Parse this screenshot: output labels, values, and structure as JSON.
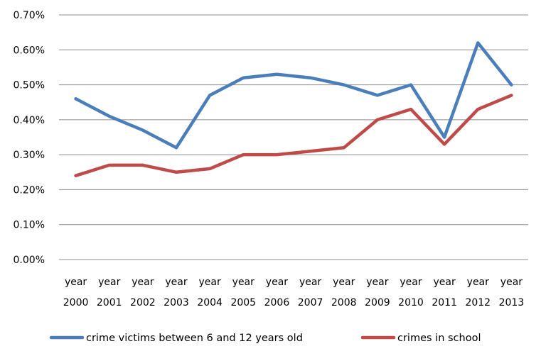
{
  "chart_data": {
    "type": "line",
    "categories": [
      [
        "year",
        "2000"
      ],
      [
        "year",
        "2001"
      ],
      [
        "year",
        "2002"
      ],
      [
        "year",
        "2003"
      ],
      [
        "year",
        "2004"
      ],
      [
        "year",
        "2005"
      ],
      [
        "year",
        "2006"
      ],
      [
        "year",
        "2007"
      ],
      [
        "year",
        "2008"
      ],
      [
        "year",
        "2009"
      ],
      [
        "year",
        "2010"
      ],
      [
        "year",
        "2011"
      ],
      [
        "year",
        "2012"
      ],
      [
        "year",
        "2013"
      ]
    ],
    "series": [
      {
        "name": "crime victims between 6 and 12 years old",
        "color": "#4a7ebb",
        "values": [
          0.46,
          0.41,
          0.37,
          0.32,
          0.47,
          0.52,
          0.53,
          0.52,
          0.5,
          0.47,
          0.5,
          0.35,
          0.62,
          0.5
        ]
      },
      {
        "name": "crimes in school",
        "color": "#be4b48",
        "values": [
          0.24,
          0.27,
          0.27,
          0.25,
          0.26,
          0.3,
          0.3,
          0.31,
          0.32,
          0.4,
          0.43,
          0.33,
          0.43,
          0.47
        ]
      }
    ],
    "y_ticks": [
      "0.00%",
      "0.10%",
      "0.20%",
      "0.30%",
      "0.40%",
      "0.50%",
      "0.60%",
      "0.70%"
    ],
    "ylim": [
      0,
      0.7
    ],
    "grid": true,
    "legend_position": "bottom",
    "gridline_color": "#8c8c8c"
  }
}
